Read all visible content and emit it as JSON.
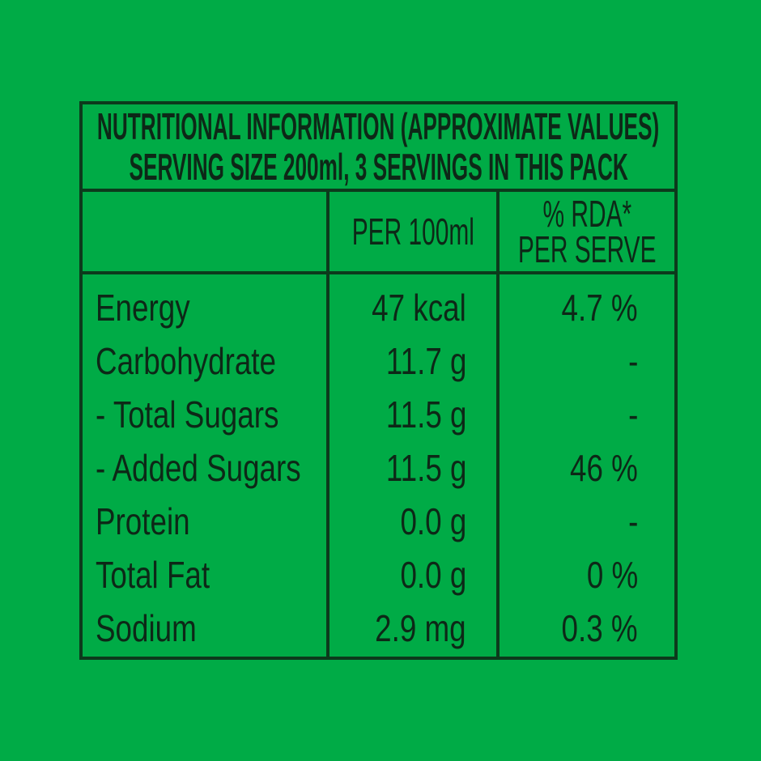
{
  "colors": {
    "background": "#00AB46",
    "ink": "#0d2817",
    "line": "#0c3a1c"
  },
  "table": {
    "title_line1": "NUTRITIONAL INFORMATION (APPROXIMATE VALUES)",
    "title_line2": "SERVING SIZE 200ml, 3 SERVINGS IN THIS PACK",
    "columns": {
      "nutrient": "",
      "per_100ml": "PER 100ml",
      "rda_line1": "% RDA*",
      "rda_line2": "PER SERVE"
    },
    "rows": [
      {
        "label": "Energy",
        "per_100ml": "47 kcal",
        "rda_per_serve": "4.7 %"
      },
      {
        "label": "Carbohydrate",
        "per_100ml": "11.7 g",
        "rda_per_serve": "-"
      },
      {
        "label": "- Total Sugars",
        "per_100ml": "11.5 g",
        "rda_per_serve": "-"
      },
      {
        "label": "- Added Sugars",
        "per_100ml": "11.5 g",
        "rda_per_serve": "46 %"
      },
      {
        "label": "Protein",
        "per_100ml": "0.0 g",
        "rda_per_serve": "-"
      },
      {
        "label": "Total Fat",
        "per_100ml": "0.0 g",
        "rda_per_serve": "0 %"
      },
      {
        "label": "Sodium",
        "per_100ml": "2.9 mg",
        "rda_per_serve": "0.3 %"
      }
    ]
  }
}
